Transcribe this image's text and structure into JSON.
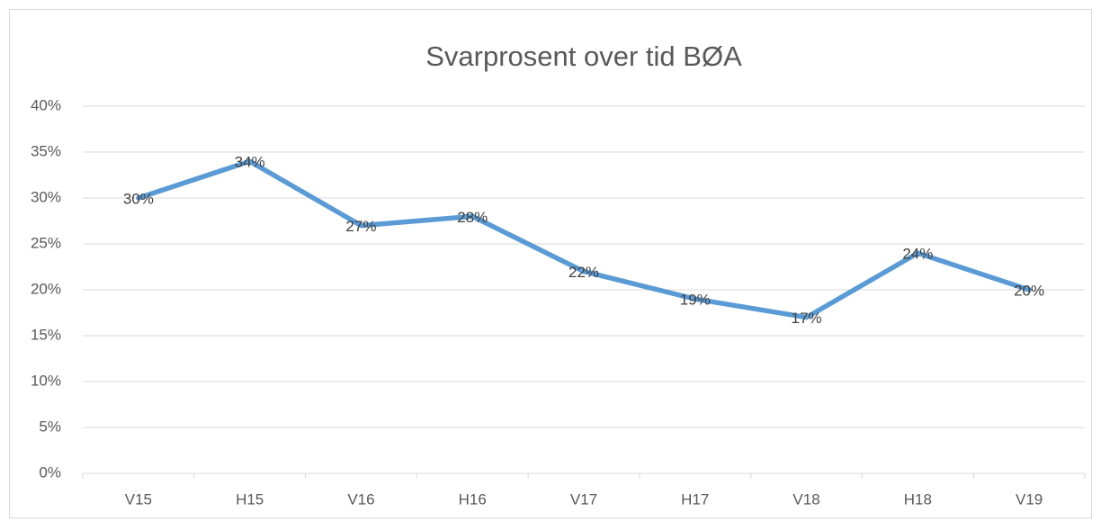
{
  "chart_data": {
    "type": "line",
    "title": "Svarprosent over tid BØA",
    "categories": [
      "V15",
      "H15",
      "V16",
      "H16",
      "V17",
      "H17",
      "V18",
      "H18",
      "V19"
    ],
    "series": [
      {
        "color": "#5b9bd5",
        "values": [
          30,
          34,
          27,
          28,
          22,
          19,
          17,
          24,
          20
        ],
        "value_labels": [
          "30%",
          "34%",
          "27%",
          "28%",
          "22%",
          "19%",
          "17%",
          "24%",
          "20%"
        ]
      }
    ],
    "ylim": [
      0,
      40
    ],
    "yticks": [
      {
        "value": 0,
        "label": "0%"
      },
      {
        "value": 5,
        "label": "5%"
      },
      {
        "value": 10,
        "label": "10%"
      },
      {
        "value": 15,
        "label": "15%"
      },
      {
        "value": 20,
        "label": "20%"
      },
      {
        "value": 25,
        "label": "25%"
      },
      {
        "value": 30,
        "label": "30%"
      },
      {
        "value": 35,
        "label": "35%"
      },
      {
        "value": 40,
        "label": "40%"
      }
    ],
    "grid": true
  }
}
